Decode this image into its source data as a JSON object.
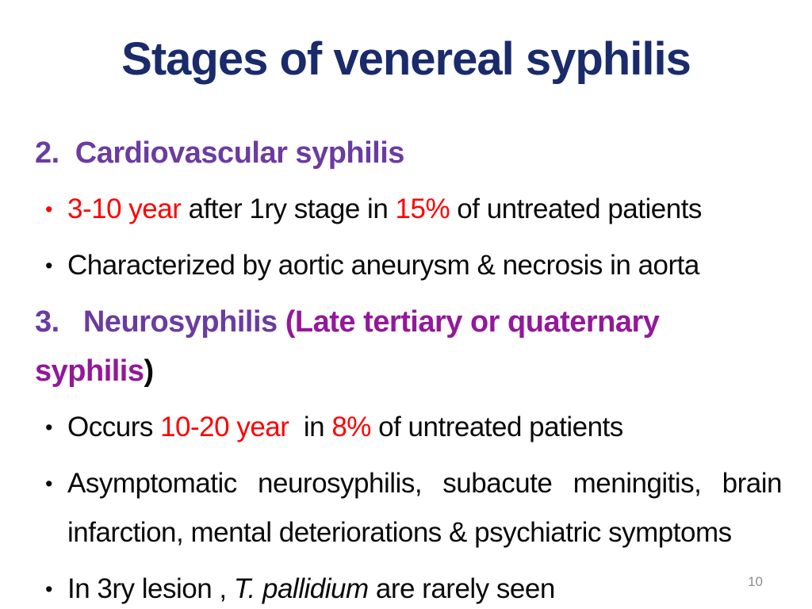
{
  "slide": {
    "title": "Stages of venereal syphilis",
    "page_number": "10",
    "colors": {
      "title": "#1A2B6C",
      "purple": "#6B3CA0",
      "magenta": "#93189A",
      "red": "#FF0000",
      "text": "#0A0A0A",
      "page_number": "#8C8C8C"
    },
    "lines": [
      {
        "type": "heading",
        "segments": [
          {
            "text": "2.  Cardiovascular syphilis",
            "color": "purple",
            "bold": true
          }
        ]
      },
      {
        "type": "bullet",
        "bullet_color": "red",
        "segments": [
          {
            "text": "3-10 year",
            "color": "red"
          },
          {
            "text": " after 1ry stage in ",
            "color": "text"
          },
          {
            "text": "15%",
            "color": "red"
          },
          {
            "text": " of untreated patients",
            "color": "text"
          }
        ]
      },
      {
        "type": "bullet",
        "bullet_color": "text",
        "segments": [
          {
            "text": "Characterized by aortic aneurysm & necrosis in aorta",
            "color": "text"
          }
        ]
      },
      {
        "type": "heading",
        "segments": [
          {
            "text": "3.   Neurosyphilis ",
            "color": "purple",
            "bold": true
          },
          {
            "text": "(Late tertiary or quaternary syphilis",
            "color": "magenta"
          },
          {
            "text": ")",
            "color": "text"
          }
        ]
      },
      {
        "type": "bullet",
        "bullet_color": "text",
        "segments": [
          {
            "text": "Occurs ",
            "color": "text"
          },
          {
            "text": "10-20 year",
            "color": "red"
          },
          {
            "text": "  in ",
            "color": "text"
          },
          {
            "text": "8%",
            "color": "red"
          },
          {
            "text": " of untreated patients",
            "color": "text"
          }
        ]
      },
      {
        "type": "bullet",
        "bullet_color": "text",
        "justify": true,
        "segments": [
          {
            "text": "Asymptomatic neurosyphilis, subacute meningitis, brain infarction, mental deteriorations & psychiatric symptoms",
            "color": "text"
          }
        ]
      },
      {
        "type": "bullet",
        "bullet_color": "text",
        "segments": [
          {
            "text": "In 3ry lesion , ",
            "color": "text"
          },
          {
            "text": "T. pallidium ",
            "color": "text",
            "italic": true
          },
          {
            "text": "are rarely seen",
            "color": "text"
          }
        ]
      }
    ]
  }
}
